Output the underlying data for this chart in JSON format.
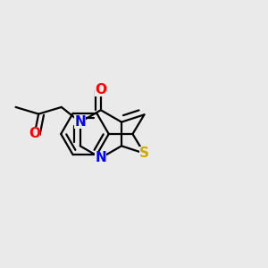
{
  "background_color": "#EAEAEA",
  "bond_color": "#000000",
  "bond_width": 1.6,
  "fig_width": 3.0,
  "fig_height": 3.0,
  "dpi": 100,
  "atom_colors": {
    "N": "#0000FF",
    "O": "#FF0000",
    "S": "#CCAA00"
  }
}
